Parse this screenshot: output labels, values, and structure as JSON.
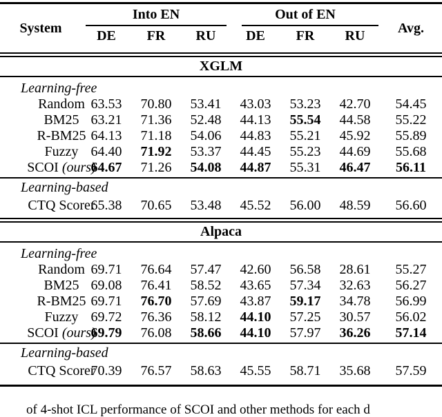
{
  "table": {
    "header": {
      "system": "System",
      "group1": "Into EN",
      "group2": "Out of EN",
      "avg": "Avg.",
      "langs": [
        "DE",
        "FR",
        "RU",
        "DE",
        "FR",
        "RU"
      ]
    },
    "sections": [
      {
        "title": "XGLM",
        "groups": [
          {
            "label": "Learning-free",
            "rows": [
              {
                "system": "Random",
                "values": [
                  "63.53",
                  "70.80",
                  "53.41",
                  "43.03",
                  "53.23",
                  "42.70",
                  "54.45"
                ]
              },
              {
                "system": "BM25",
                "values": [
                  "63.21",
                  "71.36",
                  "52.48",
                  "44.13",
                  "55.54",
                  "44.58",
                  "55.22"
                ]
              },
              {
                "system": "R-BM25",
                "values": [
                  "64.13",
                  "71.18",
                  "54.06",
                  "44.83",
                  "55.21",
                  "45.92",
                  "55.89"
                ]
              },
              {
                "system": "Fuzzy",
                "values": [
                  "64.40",
                  "71.92",
                  "53.37",
                  "44.45",
                  "55.23",
                  "44.69",
                  "55.68"
                ]
              },
              {
                "system": "SCOI",
                "system_suffix": "(ours)",
                "values": [
                  "64.67",
                  "71.26",
                  "54.08",
                  "44.87",
                  "55.31",
                  "46.47",
                  "56.11"
                ]
              }
            ]
          },
          {
            "label": "Learning-based",
            "rows": [
              {
                "system": "CTQ Scorer",
                "values": [
                  "65.38",
                  "70.65",
                  "53.48",
                  "45.52",
                  "56.00",
                  "48.59",
                  "56.60"
                ]
              }
            ]
          }
        ]
      },
      {
        "title": "Alpaca",
        "groups": [
          {
            "label": "Learning-free",
            "rows": [
              {
                "system": "Random",
                "values": [
                  "69.71",
                  "76.64",
                  "57.47",
                  "42.60",
                  "56.58",
                  "28.61",
                  "55.27"
                ]
              },
              {
                "system": "BM25",
                "values": [
                  "69.08",
                  "76.41",
                  "58.52",
                  "43.65",
                  "57.34",
                  "32.63",
                  "56.27"
                ]
              },
              {
                "system": "R-BM25",
                "values": [
                  "69.71",
                  "76.70",
                  "57.69",
                  "43.87",
                  "59.17",
                  "34.78",
                  "56.99"
                ]
              },
              {
                "system": "Fuzzy",
                "values": [
                  "69.72",
                  "76.36",
                  "58.12",
                  "44.10",
                  "57.25",
                  "30.57",
                  "56.02"
                ]
              },
              {
                "system": "SCOI",
                "system_suffix": "(ours)",
                "values": [
                  "69.79",
                  "76.08",
                  "58.66",
                  "44.10",
                  "57.97",
                  "36.26",
                  "57.14"
                ]
              }
            ]
          },
          {
            "label": "Learning-based",
            "rows": [
              {
                "system": "CTQ Scorer",
                "values": [
                  "70.39",
                  "76.57",
                  "58.63",
                  "45.55",
                  "58.71",
                  "35.68",
                  "57.59"
                ]
              }
            ]
          }
        ]
      }
    ]
  },
  "caption": "of 4-shot ICL performance of SCOI and other methods for each d"
}
